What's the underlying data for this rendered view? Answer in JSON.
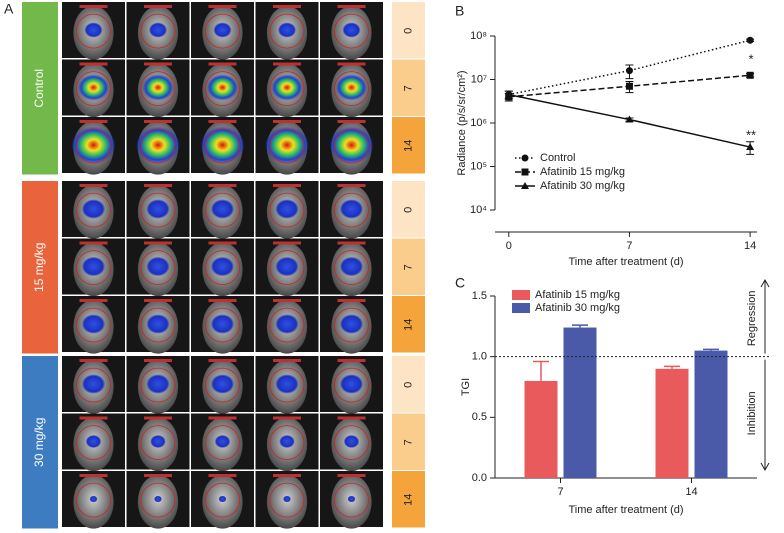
{
  "panel_a": {
    "panel_label": "A",
    "groups": [
      {
        "label": "Control",
        "color": "#72b84a"
      },
      {
        "label": "15 mg/kg",
        "color": "#e9643c"
      },
      {
        "label": "30 mg/kg",
        "color": "#3d7cc0"
      }
    ],
    "days": [
      {
        "label": "0",
        "color": "#fde4c4"
      },
      {
        "label": "7",
        "color": "#fbcd8c"
      },
      {
        "label": "14",
        "color": "#f4a43a"
      }
    ]
  },
  "chart_data": [
    {
      "type": "line",
      "panel_label": "B",
      "x_label": "Time after treatment (d)",
      "y_label": "Radiance (p/s/sr/cm²)",
      "x": [
        0,
        7,
        14
      ],
      "xlim": [
        -0.8,
        14.4
      ],
      "xticks": [
        0,
        7,
        14
      ],
      "log_y": true,
      "ylim": [
        10000,
        100000000
      ],
      "yticks": [
        {
          "value": 10000,
          "label": "10⁴"
        },
        {
          "value": 100000,
          "label": "10⁵"
        },
        {
          "value": 1000000,
          "label": "10⁶"
        },
        {
          "value": 10000000,
          "label": "10⁷"
        },
        {
          "value": 100000000,
          "label": "10⁸"
        }
      ],
      "series": [
        {
          "name": "Control",
          "color": "#111111",
          "marker": "circle",
          "line_style": "dotted",
          "values": [
            4500000,
            16000000,
            80000000
          ],
          "errors": [
            900000,
            5500000,
            5000000
          ]
        },
        {
          "name": "Afatinib 15 mg/kg",
          "color": "#111111",
          "marker": "square",
          "line_style": "dashed",
          "values": [
            4000000,
            7000000,
            12500000
          ],
          "errors": [
            800000,
            2000000,
            1200000
          ]
        },
        {
          "name": "Afatinib 30 mg/kg",
          "color": "#111111",
          "marker": "triangle",
          "line_style": "solid",
          "values": [
            4500000,
            1200000,
            280000
          ],
          "errors": [
            900000,
            100000,
            90000
          ]
        }
      ],
      "annotations": [
        "*",
        "**"
      ],
      "legend": "lower-left"
    },
    {
      "type": "bar",
      "panel_label": "C",
      "x_label": "Time after treatment (d)",
      "y_label": "TGI",
      "categories": [
        "7",
        "14"
      ],
      "ylim": [
        0,
        1.5
      ],
      "yticks": [
        {
          "value": 0,
          "label": "0.0"
        },
        {
          "value": 0.5,
          "label": "0.5"
        },
        {
          "value": 1,
          "label": "1.0"
        },
        {
          "value": 1.5,
          "label": "1.5"
        }
      ],
      "series": [
        {
          "name": "Afatinib 15 mg/kg",
          "color": "#e95a5c",
          "values": [
            0.8,
            0.9
          ],
          "errors": [
            0.16,
            0.02
          ]
        },
        {
          "name": "Afatinib 30 mg/kg",
          "color": "#4a5aa8",
          "values": [
            1.24,
            1.05
          ],
          "errors": [
            0.02,
            0.01
          ]
        }
      ],
      "reference_line": 1,
      "side_annotations": [
        "Regression",
        "Inhibition"
      ],
      "legend": "upper-left"
    }
  ]
}
